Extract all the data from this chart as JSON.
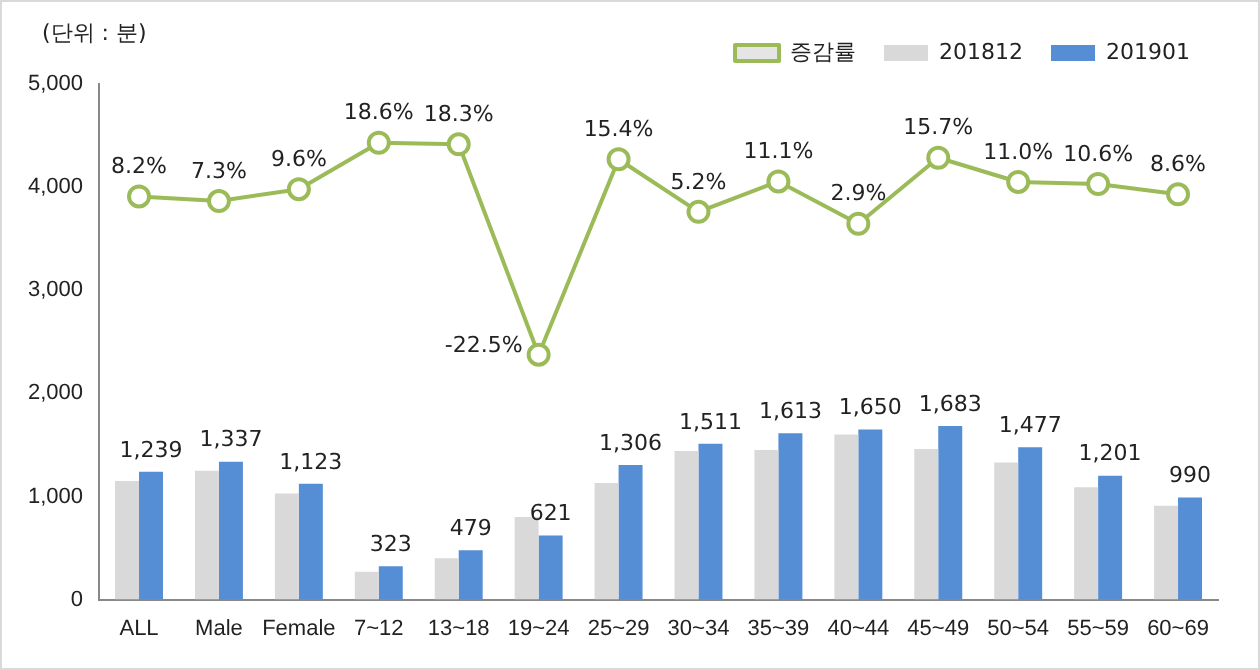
{
  "chart_data": {
    "type": "bar",
    "categories": [
      "ALL",
      "Male",
      "Female",
      "7~12",
      "13~18",
      "19~24",
      "25~29",
      "30~34",
      "35~39",
      "40~44",
      "45~49",
      "50~54",
      "55~59",
      "60~69"
    ],
    "series": [
      {
        "name": "201812",
        "color": "#d9d9d9",
        "values": [
          1150,
          1250,
          1030,
          270,
          400,
          800,
          1130,
          1440,
          1450,
          1600,
          1460,
          1330,
          1090,
          910
        ]
      },
      {
        "name": "201901",
        "color": "#558ed5",
        "values": [
          1239,
          1337,
          1123,
          323,
          479,
          621,
          1306,
          1511,
          1613,
          1650,
          1683,
          1477,
          1201,
          990
        ],
        "value_labels": [
          "1,239",
          "1,337",
          "1,123",
          "323",
          "479",
          "621",
          "1,306",
          "1,511",
          "1,613",
          "1,650",
          "1,683",
          "1,477",
          "1,201",
          "990"
        ]
      },
      {
        "name": "증감률",
        "type": "line",
        "axis": "y2",
        "color": "#9bbb59",
        "marker": "circle",
        "values": [
          8.2,
          7.3,
          9.6,
          18.6,
          18.3,
          -22.5,
          15.4,
          5.2,
          11.1,
          2.9,
          15.7,
          11.0,
          10.6,
          8.6
        ],
        "value_labels": [
          "8.2%",
          "7.3%",
          "9.6%",
          "18.6%",
          "18.3%",
          "-22.5%",
          "15.4%",
          "5.2%",
          "11.1%",
          "2.9%",
          "15.7%",
          "11.0%",
          "10.6%",
          "8.6%"
        ]
      }
    ],
    "ylim": [
      0,
      5000
    ],
    "yticks": [
      {
        "value": 0,
        "label": "0"
      },
      {
        "value": 1000,
        "label": "1,000"
      },
      {
        "value": 2000,
        "label": "2,000"
      },
      {
        "value": 3000,
        "label": "3,000"
      },
      {
        "value": 4000,
        "label": "4,000"
      },
      {
        "value": 5000,
        "label": "5,000"
      }
    ],
    "y2lim": [
      -70,
      30
    ],
    "legend": "top right",
    "grid": false,
    "annotations": [
      "(단위 : 분)"
    ]
  }
}
